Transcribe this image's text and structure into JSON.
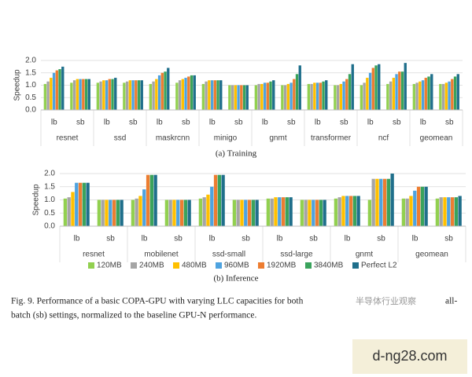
{
  "chart_data": [
    {
      "type": "bar",
      "y_label": "Speedup",
      "caption": "(a) Training",
      "categories": [
        "lb",
        "sb",
        "lb",
        "sb",
        "lb",
        "sb",
        "lb",
        "sb",
        "lb",
        "sb",
        "lb",
        "sb",
        "lb",
        "sb",
        "lb",
        "sb"
      ],
      "groups": [
        "resnet",
        "ssd",
        "maskrcnn",
        "minigo",
        "gnmt",
        "transformer",
        "ncf",
        "geomean"
      ],
      "ylim": [
        0,
        2
      ],
      "yticks": [
        {
          "value": 0,
          "label": "0.0"
        },
        0.5,
        {
          "value": 1,
          "label": "1.0"
        },
        1.5,
        {
          "value": 2,
          "label": "2.0"
        }
      ],
      "grid": true,
      "series": [
        {
          "color": "#92d050",
          "values": [
            1.05,
            1.1,
            1.1,
            1.1,
            1.05,
            1.1,
            1.05,
            1.0,
            1.0,
            1.0,
            1.05,
            1.0,
            1.0,
            1.05,
            1.05,
            1.05
          ]
        },
        {
          "color": "#a5a5a5",
          "values": [
            1.15,
            1.2,
            1.15,
            1.15,
            1.15,
            1.2,
            1.15,
            1.0,
            1.05,
            1.0,
            1.05,
            1.0,
            1.1,
            1.15,
            1.1,
            1.05
          ]
        },
        {
          "color": "#ffc000",
          "values": [
            1.3,
            1.25,
            1.2,
            1.2,
            1.25,
            1.25,
            1.2,
            1.0,
            1.05,
            1.05,
            1.1,
            1.05,
            1.3,
            1.3,
            1.15,
            1.1
          ]
        },
        {
          "color": "#4ea3e0",
          "values": [
            1.5,
            1.25,
            1.2,
            1.2,
            1.4,
            1.3,
            1.2,
            1.0,
            1.1,
            1.1,
            1.1,
            1.15,
            1.5,
            1.45,
            1.2,
            1.15
          ]
        },
        {
          "color": "#ed7d31",
          "values": [
            1.6,
            1.25,
            1.25,
            1.2,
            1.5,
            1.35,
            1.2,
            1.0,
            1.1,
            1.25,
            1.1,
            1.25,
            1.7,
            1.55,
            1.3,
            1.25
          ]
        },
        {
          "color": "#3aa35c",
          "values": [
            1.65,
            1.25,
            1.25,
            1.2,
            1.55,
            1.4,
            1.2,
            1.0,
            1.15,
            1.45,
            1.15,
            1.45,
            1.8,
            1.55,
            1.35,
            1.35
          ]
        },
        {
          "color": "#1f6f8b",
          "values": [
            1.75,
            1.25,
            1.3,
            1.2,
            1.7,
            1.4,
            1.2,
            1.0,
            1.2,
            1.8,
            1.2,
            1.85,
            1.85,
            1.9,
            1.45,
            1.45
          ]
        }
      ]
    },
    {
      "type": "bar",
      "y_label": "Speedup",
      "caption": "(b) Inference",
      "categories": [
        "lb",
        "sb",
        "lb",
        "sb",
        "lb",
        "sb",
        "lb",
        "sb",
        "lb",
        "sb",
        "lb",
        "sb"
      ],
      "groups": [
        "resnet",
        "mobilenet",
        "ssd-small",
        "ssd-large",
        "gnmt",
        "geomean"
      ],
      "ylim": [
        0,
        2
      ],
      "yticks": [
        {
          "value": 0,
          "label": "0.0"
        },
        0.5,
        {
          "value": 1,
          "label": "1.0"
        },
        1.5,
        {
          "value": 2,
          "label": "2.0"
        }
      ],
      "grid": true,
      "legend": "bottom",
      "series": [
        {
          "name": "120MB",
          "color": "#92d050",
          "values": [
            1.05,
            1,
            1.0,
            1,
            1.05,
            1,
            1.05,
            1,
            1.05,
            1.0,
            1.05,
            1.05
          ]
        },
        {
          "name": "240MB",
          "color": "#a5a5a5",
          "values": [
            1.1,
            1,
            1.05,
            1,
            1.1,
            1,
            1.05,
            1,
            1.1,
            1.8,
            1.05,
            1.1
          ]
        },
        {
          "name": "480MB",
          "color": "#ffc000",
          "values": [
            1.3,
            1,
            1.15,
            1,
            1.2,
            1,
            1.1,
            1,
            1.15,
            1.8,
            1.15,
            1.1
          ]
        },
        {
          "name": "960MB",
          "color": "#4ea3e0",
          "values": [
            1.65,
            1,
            1.4,
            1,
            1.5,
            1,
            1.1,
            1,
            1.15,
            1.8,
            1.35,
            1.1
          ]
        },
        {
          "name": "1920MB",
          "color": "#ed7d31",
          "values": [
            1.65,
            1,
            1.95,
            1,
            1.95,
            1,
            1.1,
            1,
            1.15,
            1.8,
            1.5,
            1.1
          ]
        },
        {
          "name": "3840MB",
          "color": "#3aa35c",
          "values": [
            1.65,
            1,
            1.95,
            1,
            1.95,
            1,
            1.1,
            1,
            1.15,
            1.8,
            1.5,
            1.1
          ]
        },
        {
          "name": "Perfect L2",
          "color": "#1f6f8b",
          "values": [
            1.65,
            1,
            1.95,
            1,
            1.95,
            1,
            1.1,
            1,
            1.15,
            2.0,
            1.5,
            1.15
          ]
        }
      ]
    }
  ],
  "caption": {
    "line1": "Fig. 9.  Performance of a basic COPA-GPU with varying LLC capacities for both",
    "line1_end": "all-",
    "line2": "batch (sb) settings, normalized to the baseline GPU-N performance."
  },
  "watermark": "半导体行业观察",
  "site": "d-ng28.com"
}
